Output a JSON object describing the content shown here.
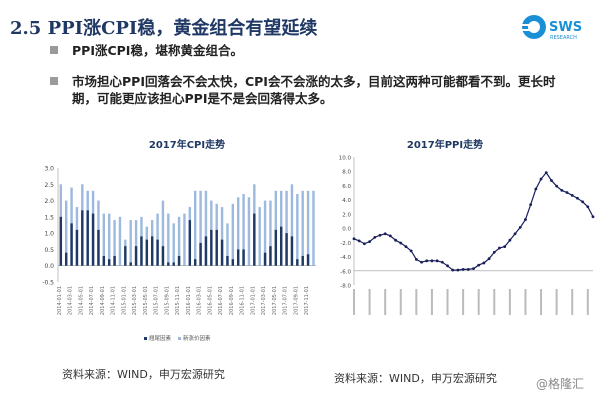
{
  "slide": {
    "title": "2.5 PPI涨CPI稳，黄金组合有望延续",
    "logo_text": "SWS",
    "logo_sub": "RESEARCH",
    "bullets": [
      "PPI涨CPI稳，堪称黄金组合。",
      "市场担心PPI回落会不会太快，CPI会不会涨的太多，目前这两种可能都看不到。更长时期，可能更应该担心PPI是不是会回落得太多。"
    ],
    "source_left": "资料来源：WIND，申万宏源研究",
    "source_right": "资料来源：WIND，申万宏源研究",
    "watermark": "@格隆汇"
  },
  "colors": {
    "title": "#1f3864",
    "dark_bar": "#1f3864",
    "light_bar": "#9db9de",
    "line": "#1a1f5c"
  },
  "chart_data": [
    {
      "type": "bar",
      "title": "2017年CPI走势",
      "ylim": [
        -0.5,
        3.0
      ],
      "yticks": [
        "3.0",
        "2.5",
        "2.0",
        "1.5",
        "1.0",
        "0.5",
        "0.0",
        "-0.5"
      ],
      "tick_labels": [
        "2014-01-01",
        "2014-03-01",
        "2014-05-01",
        "2014-07-01",
        "2014-09-01",
        "2014-11-01",
        "2015-01-01",
        "2015-03-01",
        "2015-05-01",
        "2015-07-01",
        "2015-09-01",
        "2015-11-01",
        "2016-01-01",
        "2016-03-01",
        "2016-05-01",
        "2016-07-01",
        "2016-09-01",
        "2016-11-01",
        "2017-01-01",
        "2017-03-01",
        "2017-05-01",
        "2017-07-01",
        "2017-09-01",
        "2017-11-01"
      ],
      "legend": "bottom",
      "series": [
        {
          "name": "翘尾因素",
          "color": "#1f3864",
          "values": [
            1.5,
            0.4,
            1.3,
            1.1,
            1.7,
            1.7,
            1.6,
            1.1,
            0.3,
            0.2,
            0.3,
            0,
            0.6,
            0.1,
            0.6,
            0.9,
            0.8,
            0.9,
            0.8,
            0.6,
            0.1,
            0.1,
            0.3,
            0,
            1.4,
            0.2,
            0.7,
            0.9,
            1.1,
            1.1,
            0.8,
            0.3,
            0.2,
            0.5,
            0.5,
            0,
            1.6,
            0,
            0.4,
            0.6,
            1.1,
            1.2,
            1.0,
            0.9,
            0.2,
            0.3,
            0.35,
            0
          ]
        },
        {
          "name": "新涨价因素",
          "color": "#9db9de",
          "total_values": [
            2.5,
            2.0,
            2.4,
            1.8,
            2.5,
            2.3,
            2.3,
            2.0,
            1.6,
            1.6,
            1.4,
            1.5,
            0.8,
            1.4,
            1.4,
            1.5,
            1.2,
            1.4,
            1.6,
            2.0,
            1.6,
            1.3,
            1.5,
            1.6,
            1.8,
            2.3,
            2.3,
            2.3,
            2.0,
            1.9,
            1.8,
            1.3,
            1.9,
            2.1,
            2.2,
            2.1,
            2.5,
            1.8,
            2.0,
            2.0,
            2.3,
            2.3,
            2.3,
            2.5,
            2.2,
            2.3,
            2.3,
            2.3
          ]
        }
      ]
    },
    {
      "type": "line",
      "title": "2017年PPI走势",
      "ylim": [
        -8.0,
        10.0
      ],
      "yticks": [
        "10.0",
        "8.0",
        "6.0",
        "4.0",
        "2.0",
        "0.0",
        "-2.0",
        "-4.0",
        "-6.0",
        "-8.0"
      ],
      "series": [
        {
          "color": "#1a1f5c",
          "values": [
            -1.5,
            -1.8,
            -2.2,
            -1.9,
            -1.3,
            -1.0,
            -0.8,
            -1.1,
            -1.7,
            -2.1,
            -2.6,
            -3.2,
            -4.4,
            -4.8,
            -4.6,
            -4.6,
            -4.6,
            -4.8,
            -5.3,
            -5.9,
            -5.9,
            -5.8,
            -5.8,
            -5.7,
            -5.2,
            -4.9,
            -4.3,
            -3.4,
            -2.8,
            -2.6,
            -1.7,
            -0.8,
            0.1,
            1.2,
            3.3,
            5.5,
            6.9,
            7.8,
            6.7,
            5.9,
            5.3,
            5.0,
            4.6,
            4.2,
            3.7,
            3.0,
            1.6
          ]
        }
      ]
    }
  ]
}
